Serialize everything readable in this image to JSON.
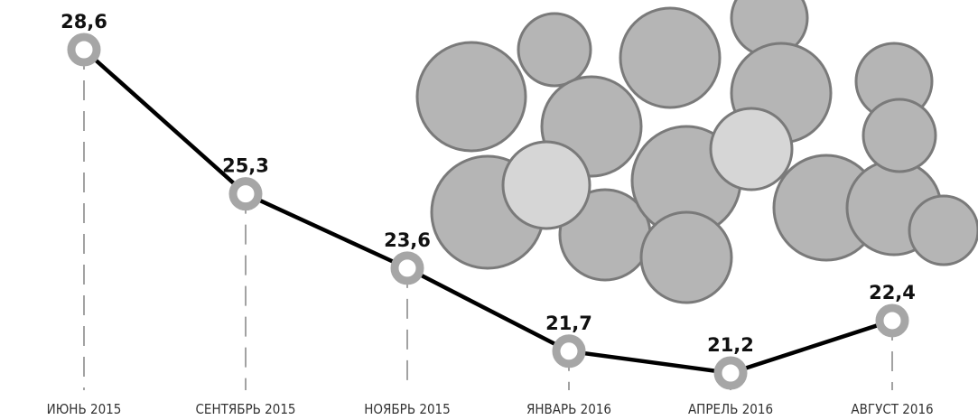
{
  "chart_data": {
    "type": "line",
    "categories": [
      "ИЮНЬ 2015",
      "СЕНТЯБРЬ 2015",
      "НОЯБРЬ 2015",
      "ЯНВАРЬ 2016",
      "АПРЕЛЬ 2016",
      "АВГУСТ 2016"
    ],
    "values": [
      28.6,
      25.3,
      23.6,
      21.7,
      21.2,
      22.4
    ],
    "value_labels": [
      "28,6",
      "25,3",
      "23,6",
      "21,7",
      "21,2",
      "22,4"
    ],
    "color": "#000000",
    "marker_color": "#a6a6a6"
  }
}
